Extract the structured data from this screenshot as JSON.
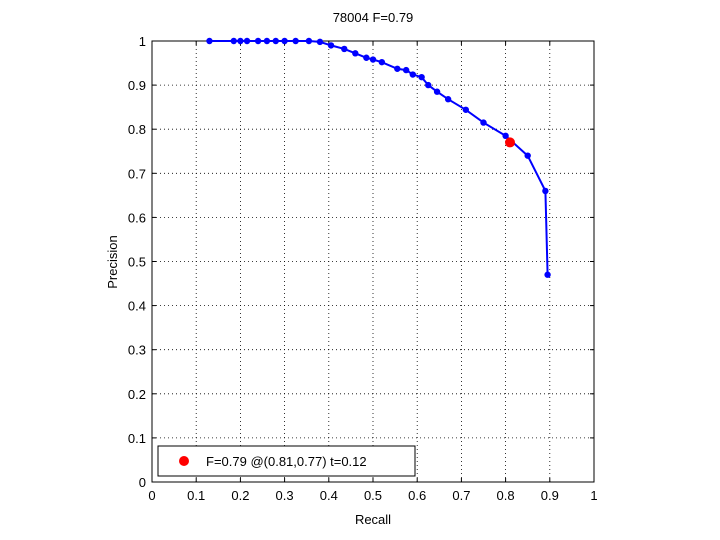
{
  "chart_data": {
    "type": "line",
    "title": "78004 F=0.79",
    "xlabel": "Recall",
    "ylabel": "Precision",
    "xlim": [
      0,
      1
    ],
    "ylim": [
      0,
      1
    ],
    "xticks": [
      "0",
      "0.1",
      "0.2",
      "0.3",
      "0.4",
      "0.5",
      "0.6",
      "0.7",
      "0.8",
      "0.9",
      "1"
    ],
    "yticks": [
      "0",
      "0.1",
      "0.2",
      "0.3",
      "0.4",
      "0.5",
      "0.6",
      "0.7",
      "0.8",
      "0.9",
      "1"
    ],
    "grid": true,
    "legend_position": "bottom-left",
    "series": [
      {
        "color": "#0000ff",
        "marker": "dot",
        "points": [
          [
            0.13,
            1.0
          ],
          [
            0.185,
            1.0
          ],
          [
            0.2,
            1.0
          ],
          [
            0.215,
            1.0
          ],
          [
            0.24,
            1.0
          ],
          [
            0.26,
            1.0
          ],
          [
            0.28,
            1.0
          ],
          [
            0.3,
            1.0
          ],
          [
            0.325,
            1.0
          ],
          [
            0.355,
            1.0
          ],
          [
            0.38,
            0.998
          ],
          [
            0.405,
            0.99
          ],
          [
            0.435,
            0.982
          ],
          [
            0.46,
            0.972
          ],
          [
            0.485,
            0.962
          ],
          [
            0.5,
            0.958
          ],
          [
            0.52,
            0.952
          ],
          [
            0.555,
            0.937
          ],
          [
            0.575,
            0.934
          ],
          [
            0.59,
            0.924
          ],
          [
            0.61,
            0.918
          ],
          [
            0.625,
            0.9
          ],
          [
            0.645,
            0.885
          ],
          [
            0.67,
            0.868
          ],
          [
            0.71,
            0.844
          ],
          [
            0.75,
            0.815
          ],
          [
            0.8,
            0.785
          ],
          [
            0.85,
            0.74
          ],
          [
            0.89,
            0.66
          ],
          [
            0.895,
            0.47
          ]
        ]
      }
    ],
    "best_point": {
      "recall": 0.81,
      "precision": 0.77,
      "color": "#ff0000",
      "legend_label": "F=0.79 @(0.81,0.77) t=0.12"
    }
  }
}
